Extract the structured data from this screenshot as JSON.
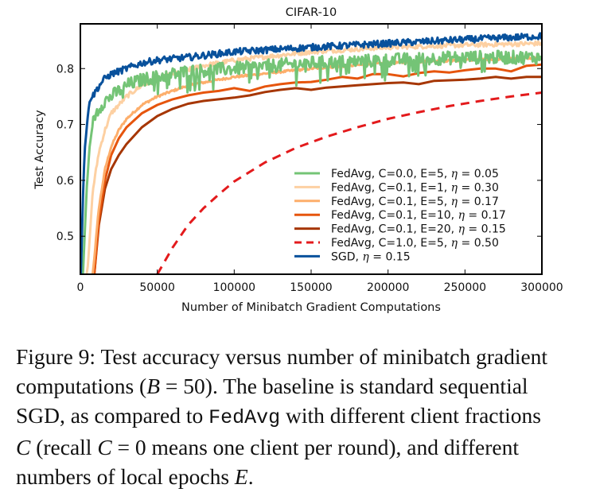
{
  "chart_data": {
    "type": "line",
    "title": "CIFAR-10",
    "xlabel": "Number of Minibatch Gradient Computations",
    "ylabel": "Test Accuracy",
    "xlim": [
      0,
      300000
    ],
    "ylim": [
      0.432,
      0.88
    ],
    "x_ticks": [
      0,
      50000,
      100000,
      150000,
      200000,
      250000,
      300000
    ],
    "x_tick_labels": [
      "0",
      "50000",
      "100000",
      "150000",
      "200000",
      "250000",
      "300000"
    ],
    "y_ticks": [
      0.5,
      0.6,
      0.7,
      0.8
    ],
    "y_tick_labels": [
      "0.5",
      "0.6",
      "0.7",
      "0.8"
    ],
    "grid": false,
    "legend_position": "lower-right",
    "series": [
      {
        "name": "FedAvg, C=0.0, E=5, η =  0.05",
        "legend_prefix": "FedAvg, C=0.0, E=5, ",
        "legend_suffix": " =  0.05",
        "color": "#74c476",
        "style": "solid",
        "noise": 0.012,
        "x": [
          0,
          2000,
          4000,
          6000,
          8000,
          10000,
          15000,
          20000,
          30000,
          40000,
          50000,
          70000,
          100000,
          150000,
          200000,
          250000,
          300000
        ],
        "y": [
          0.35,
          0.45,
          0.58,
          0.66,
          0.7,
          0.72,
          0.74,
          0.75,
          0.77,
          0.78,
          0.785,
          0.795,
          0.8,
          0.81,
          0.815,
          0.82,
          0.82
        ]
      },
      {
        "name": "FedAvg, C=0.1, E=1, η =  0.30",
        "legend_prefix": "FedAvg, C=0.1, E=1, ",
        "legend_suffix": " =  0.30",
        "color": "#fdd0a2",
        "style": "solid",
        "noise": 0.004,
        "x": [
          0,
          5000,
          8000,
          12000,
          16000,
          20000,
          30000,
          40000,
          50000,
          60000,
          80000,
          100000,
          150000,
          200000,
          250000,
          300000
        ],
        "y": [
          0.35,
          0.45,
          0.58,
          0.65,
          0.69,
          0.72,
          0.75,
          0.77,
          0.78,
          0.79,
          0.805,
          0.815,
          0.83,
          0.838,
          0.842,
          0.845
        ]
      },
      {
        "name": "FedAvg, C=0.1, E=5, η =  0.17",
        "legend_prefix": "FedAvg, C=0.1, E=5, ",
        "legend_suffix": " =  0.17",
        "color": "#fdae6b",
        "style": "solid",
        "noise": 0.002,
        "x": [
          0,
          8000,
          12000,
          16000,
          20000,
          25000,
          30000,
          40000,
          50000,
          60000,
          70000,
          80000,
          100000,
          150000,
          200000,
          250000,
          300000
        ],
        "y": [
          0.35,
          0.43,
          0.55,
          0.62,
          0.66,
          0.69,
          0.71,
          0.735,
          0.75,
          0.76,
          0.77,
          0.775,
          0.785,
          0.8,
          0.81,
          0.815,
          0.82
        ]
      },
      {
        "name": "FedAvg, C=0.1, E=10, η =  0.17",
        "legend_prefix": "FedAvg, C=0.1, E=10, ",
        "legend_suffix": " =  0.17",
        "color": "#e6550d",
        "style": "solid",
        "noise": 0.0,
        "x": [
          0,
          9000,
          12000,
          16000,
          20000,
          25000,
          30000,
          40000,
          50000,
          60000,
          70000,
          80000,
          90000,
          100000,
          110000,
          120000,
          130000,
          140000,
          150000,
          160000,
          170000,
          180000,
          190000,
          200000,
          210000,
          220000,
          230000,
          240000,
          250000,
          260000,
          270000,
          280000,
          290000,
          300000
        ],
        "y": [
          0.35,
          0.43,
          0.53,
          0.6,
          0.645,
          0.675,
          0.695,
          0.72,
          0.735,
          0.745,
          0.752,
          0.757,
          0.76,
          0.765,
          0.76,
          0.768,
          0.772,
          0.775,
          0.776,
          0.78,
          0.785,
          0.782,
          0.79,
          0.79,
          0.786,
          0.792,
          0.795,
          0.793,
          0.797,
          0.8,
          0.8,
          0.795,
          0.805,
          0.807
        ]
      },
      {
        "name": "FedAvg, C=0.1, E=20, η =  0.15",
        "legend_prefix": "FedAvg, C=0.1, E=20, ",
        "legend_suffix": " =  0.15",
        "color": "#a63603",
        "style": "solid",
        "noise": 0.0,
        "x": [
          0,
          9000,
          12000,
          16000,
          20000,
          25000,
          30000,
          40000,
          50000,
          60000,
          70000,
          80000,
          100000,
          110000,
          120000,
          130000,
          140000,
          150000,
          160000,
          170000,
          180000,
          190000,
          200000,
          210000,
          220000,
          230000,
          240000,
          250000,
          260000,
          270000,
          280000,
          290000,
          300000
        ],
        "y": [
          0.35,
          0.43,
          0.52,
          0.585,
          0.62,
          0.645,
          0.665,
          0.695,
          0.715,
          0.728,
          0.737,
          0.742,
          0.748,
          0.752,
          0.758,
          0.762,
          0.765,
          0.762,
          0.766,
          0.768,
          0.77,
          0.772,
          0.774,
          0.775,
          0.772,
          0.778,
          0.779,
          0.78,
          0.782,
          0.785,
          0.782,
          0.785,
          0.785
        ]
      },
      {
        "name": "FedAvg, C=1.0, E=5, η =  0.50",
        "legend_prefix": "FedAvg, C=1.0, E=5, ",
        "legend_suffix": " =  0.50",
        "color": "#e31a1c",
        "style": "dashed",
        "noise": 0.0,
        "x": [
          50000,
          60000,
          70000,
          80000,
          90000,
          100000,
          120000,
          140000,
          160000,
          180000,
          200000,
          220000,
          240000,
          260000,
          280000,
          300000
        ],
        "y": [
          0.432,
          0.48,
          0.52,
          0.55,
          0.575,
          0.598,
          0.632,
          0.658,
          0.678,
          0.695,
          0.71,
          0.722,
          0.733,
          0.742,
          0.75,
          0.757
        ]
      },
      {
        "name": "SGD, η =  0.15",
        "legend_prefix": "SGD, ",
        "legend_suffix": " =  0.15",
        "color": "#08519c",
        "style": "solid",
        "noise": 0.006,
        "x": [
          0,
          1000,
          2000,
          3000,
          4000,
          5000,
          6000,
          8000,
          10000,
          15000,
          20000,
          30000,
          40000,
          50000,
          70000,
          100000,
          150000,
          200000,
          250000,
          300000
        ],
        "y": [
          0.4,
          0.5,
          0.6,
          0.66,
          0.69,
          0.72,
          0.74,
          0.75,
          0.76,
          0.78,
          0.79,
          0.8,
          0.81,
          0.815,
          0.82,
          0.83,
          0.838,
          0.845,
          0.852,
          0.858
        ]
      }
    ]
  },
  "caption": {
    "line1": "Figure 9: Test accuracy versus number of minibatch gradient",
    "line2_a": "computations (",
    "line2_b": "B",
    "line2_c": " = 50). The baseline is standard sequential",
    "line3_a": "SGD, as compared to ",
    "line3_b": "FedAvg",
    "line3_c": " with different client fractions",
    "line4_a": "C",
    "line4_b": " (recall ",
    "line4_c": "C",
    "line4_d": " = 0 means one client per round), and different",
    "line5_a": "numbers of local epochs ",
    "line5_b": "E",
    "line5_c": "."
  },
  "eta_symbol": "η"
}
